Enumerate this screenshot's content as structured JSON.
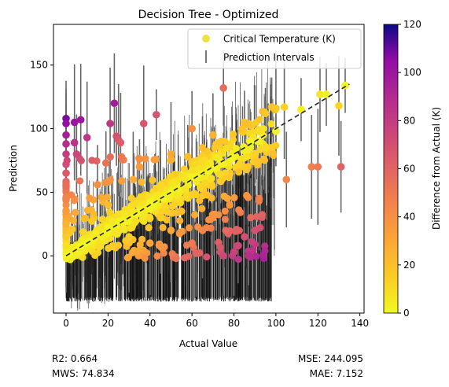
{
  "chart_data": {
    "type": "scatter",
    "title": "Decision Tree - Optimized",
    "xlabel": "Actual Value",
    "ylabel": "Prediction",
    "xlim": [
      -6,
      142
    ],
    "ylim": [
      -45,
      182
    ],
    "xticks": [
      0,
      20,
      40,
      60,
      80,
      100,
      120,
      140
    ],
    "yticks": [
      0,
      50,
      100,
      150
    ],
    "reference_line": {
      "style": "dashed",
      "from": [
        0,
        0
      ],
      "to": [
        135,
        135
      ],
      "color": "#222222"
    },
    "legend": {
      "placement": "top-right",
      "entries": [
        {
          "label": "Critical Temperature (K)",
          "marker": "circle",
          "color": "#f0e142"
        },
        {
          "label": "Prediction Intervals",
          "marker": "vertical-line",
          "color": "#555555"
        }
      ]
    },
    "colorbar": {
      "label": "Difference from Actual (K)",
      "min": 0,
      "max": 120,
      "ticks": [
        0,
        20,
        40,
        60,
        80,
        100,
        120
      ],
      "colormap": "plasma (reversed: 0 = yellow, 120 = dark blue)"
    },
    "points": [
      {
        "x": 0,
        "y": 108,
        "diff": 108
      },
      {
        "x": 0,
        "y": 104,
        "diff": 104
      },
      {
        "x": 0,
        "y": 95,
        "diff": 95
      },
      {
        "x": 0,
        "y": 88,
        "diff": 88
      },
      {
        "x": 0,
        "y": 80,
        "diff": 80
      },
      {
        "x": 0,
        "y": 72,
        "diff": 72
      },
      {
        "x": 0,
        "y": 65,
        "diff": 65
      },
      {
        "x": 0,
        "y": 55,
        "diff": 55
      },
      {
        "x": 0,
        "y": 45,
        "diff": 45
      },
      {
        "x": 0,
        "y": 35,
        "diff": 35
      },
      {
        "x": 0,
        "y": 25,
        "diff": 25
      },
      {
        "x": 0,
        "y": 15,
        "diff": 15
      },
      {
        "x": 0,
        "y": 8,
        "diff": 8
      },
      {
        "x": 4,
        "y": 105,
        "diff": 101
      },
      {
        "x": 4,
        "y": 89,
        "diff": 85
      },
      {
        "x": 5,
        "y": 80,
        "diff": 75
      },
      {
        "x": 7,
        "y": 107,
        "diff": 100
      },
      {
        "x": 10,
        "y": 93,
        "diff": 83
      },
      {
        "x": 23,
        "y": 120,
        "diff": 97
      },
      {
        "x": 21,
        "y": 104,
        "diff": 83
      },
      {
        "x": 24,
        "y": 94,
        "diff": 70
      },
      {
        "x": 25,
        "y": 91,
        "diff": 66
      },
      {
        "x": 26,
        "y": 89,
        "diff": 63
      },
      {
        "x": 19,
        "y": 73,
        "diff": 54
      },
      {
        "x": 15,
        "y": 56,
        "diff": 41
      },
      {
        "x": 43,
        "y": 111,
        "diff": 68
      },
      {
        "x": 37,
        "y": 104,
        "diff": 67
      },
      {
        "x": 75,
        "y": 132,
        "diff": 57
      },
      {
        "x": 60,
        "y": 100,
        "diff": 40
      },
      {
        "x": 58,
        "y": 78,
        "diff": 20
      },
      {
        "x": 45,
        "y": 55,
        "diff": 10
      },
      {
        "x": 32,
        "y": 60,
        "diff": 28
      },
      {
        "x": 70,
        "y": 95,
        "diff": 25
      },
      {
        "x": 85,
        "y": 105,
        "diff": 20
      },
      {
        "x": 65,
        "y": 20,
        "diff": 45
      },
      {
        "x": 60,
        "y": 10,
        "diff": 50
      },
      {
        "x": 62,
        "y": 2,
        "diff": 60
      },
      {
        "x": 75,
        "y": 0,
        "diff": 75
      },
      {
        "x": 80,
        "y": 3,
        "diff": 77
      },
      {
        "x": 82,
        "y": 8,
        "diff": 74
      },
      {
        "x": 85,
        "y": 15,
        "diff": 70
      },
      {
        "x": 88,
        "y": 30,
        "diff": 58
      },
      {
        "x": 87,
        "y": 0,
        "diff": 87
      },
      {
        "x": 90,
        "y": 20,
        "diff": 70
      },
      {
        "x": 92,
        "y": 45,
        "diff": 47
      },
      {
        "x": 78,
        "y": 40,
        "diff": 38
      },
      {
        "x": 70,
        "y": 30,
        "diff": 40
      },
      {
        "x": 50,
        "y": 20,
        "diff": 30
      },
      {
        "x": 45,
        "y": 30,
        "diff": 15
      },
      {
        "x": 55,
        "y": 35,
        "diff": 20
      },
      {
        "x": 40,
        "y": 10,
        "diff": 30
      },
      {
        "x": 30,
        "y": 15,
        "diff": 15
      },
      {
        "x": 20,
        "y": 40,
        "diff": 20
      },
      {
        "x": 35,
        "y": 70,
        "diff": 35
      },
      {
        "x": 50,
        "y": 80,
        "diff": 30
      },
      {
        "x": 65,
        "y": 85,
        "diff": 20
      },
      {
        "x": 105,
        "y": 60,
        "diff": 45
      },
      {
        "x": 117,
        "y": 70,
        "diff": 47
      },
      {
        "x": 120,
        "y": 70,
        "diff": 50
      },
      {
        "x": 131,
        "y": 70,
        "diff": 61
      },
      {
        "x": 95,
        "y": 112,
        "diff": 17
      },
      {
        "x": 98,
        "y": 117,
        "diff": 19
      },
      {
        "x": 100,
        "y": 116,
        "diff": 16
      },
      {
        "x": 104,
        "y": 117,
        "diff": 13
      },
      {
        "x": 112,
        "y": 115,
        "diff": 3
      },
      {
        "x": 121,
        "y": 127,
        "diff": 6
      },
      {
        "x": 124,
        "y": 127,
        "diff": 3
      },
      {
        "x": 130,
        "y": 118,
        "diff": 12
      },
      {
        "x": 133,
        "y": 134,
        "diff": 1
      },
      {
        "x": 95,
        "y": 85,
        "diff": 10
      },
      {
        "x": 100,
        "y": 98,
        "diff": 2
      },
      {
        "x": 88,
        "y": 90,
        "diff": 2
      },
      {
        "x": 75,
        "y": 72,
        "diff": 3
      },
      {
        "x": 60,
        "y": 62,
        "diff": 2
      },
      {
        "x": 40,
        "y": 42,
        "diff": 2
      },
      {
        "x": 20,
        "y": 22,
        "diff": 2
      }
    ],
    "annotations": [
      {
        "key": "r2",
        "text": "R2: 0.664"
      },
      {
        "key": "mws",
        "text": "MWS: 74.834"
      },
      {
        "key": "mse",
        "text": "MSE: 244.095"
      },
      {
        "key": "mae",
        "text": "MAE: 7.152"
      }
    ]
  },
  "metrics": {
    "r2": "R2: 0.664",
    "mws": "MWS: 74.834",
    "mse": "MSE: 244.095",
    "mae": "MAE: 7.152"
  }
}
